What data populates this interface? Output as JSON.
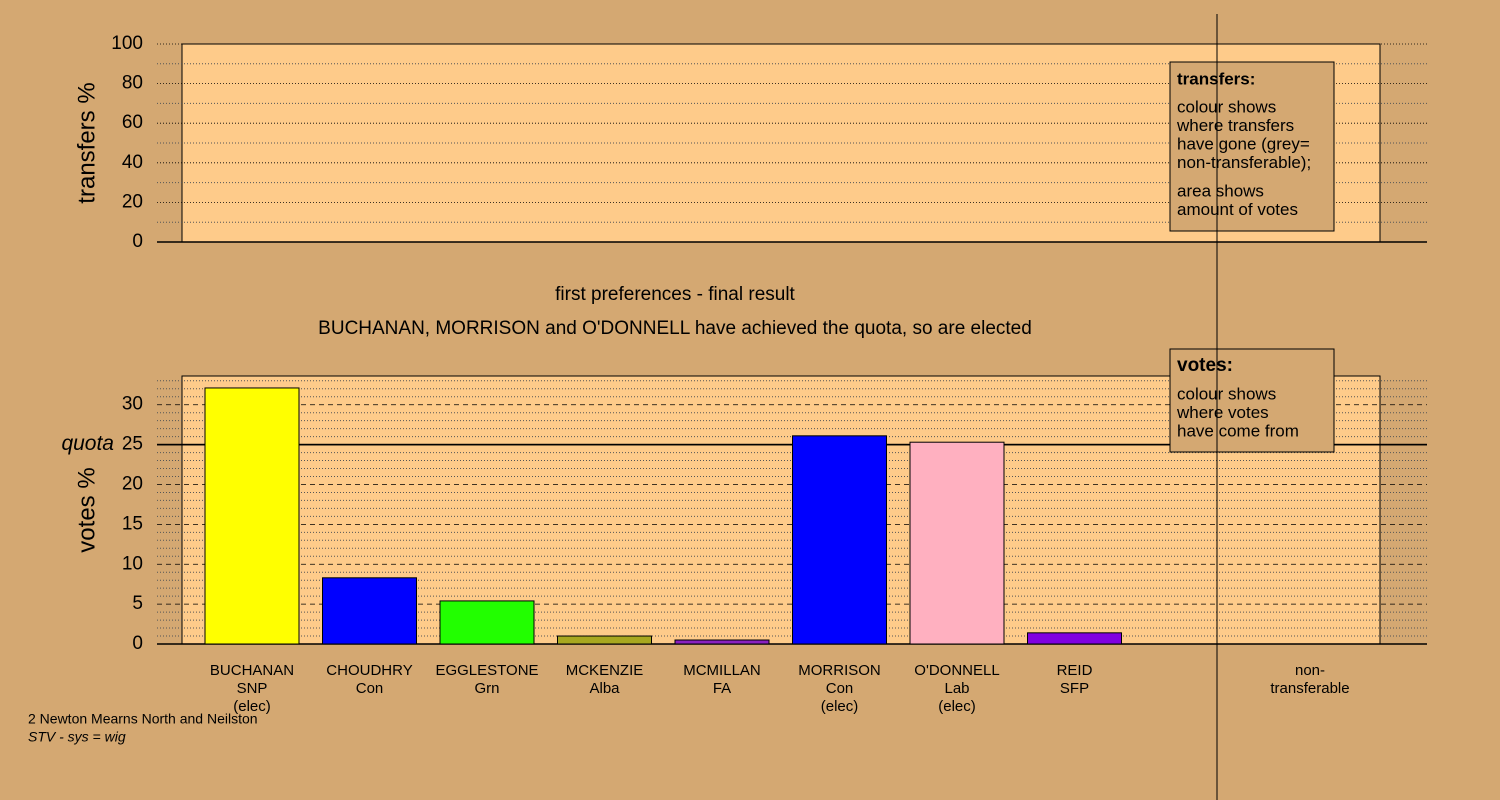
{
  "chart_data": [
    {
      "type": "bar",
      "ylabel": "transfers %",
      "ylim": [
        0,
        100
      ],
      "yticks": [
        0,
        20,
        40,
        60,
        80,
        100
      ],
      "minor_yticks": [
        10,
        30,
        50,
        70,
        90
      ],
      "legend": {
        "title": "transfers:",
        "paragraphs": [
          [
            "colour shows",
            "where transfers",
            "have gone (grey=",
            "non-transferable);"
          ],
          [
            "area shows",
            "amount of votes"
          ]
        ]
      }
    },
    {
      "type": "bar",
      "title": "first preferences - final result",
      "subtitle": "BUCHANAN, MORRISON and O'DONNELL have achieved the quota, so are elected",
      "ylabel": "votes %",
      "ylim": [
        0,
        33.6
      ],
      "yticks": [
        0,
        5,
        10,
        15,
        20,
        25,
        30
      ],
      "minor_yticks": [
        1,
        2,
        3,
        4,
        6,
        7,
        8,
        9,
        11,
        12,
        13,
        14,
        16,
        17,
        18,
        19,
        21,
        22,
        23,
        24,
        26,
        27,
        28,
        29,
        31,
        32,
        33
      ],
      "quota": {
        "value": 25,
        "label": "quota"
      },
      "categories": [
        [
          "BUCHANAN",
          "SNP",
          "(elec)"
        ],
        [
          "CHOUDHRY",
          "Con"
        ],
        [
          "EGGLESTONE",
          "Grn"
        ],
        [
          "MCKENZIE",
          "Alba"
        ],
        [
          "MCMILLAN",
          "FA"
        ],
        [
          "MORRISON",
          "Con",
          "(elec)"
        ],
        [
          "O'DONNELL",
          "Lab",
          "(elec)"
        ],
        [
          "REID",
          "SFP"
        ]
      ],
      "values": [
        32.1,
        8.3,
        5.4,
        1.0,
        0.5,
        26.1,
        25.3,
        1.4
      ],
      "colors": [
        "#ffff00",
        "#0000ff",
        "#22ff00",
        "#a8a820",
        "#8a20c0",
        "#0000ff",
        "#ffb0c0",
        "#8000e0"
      ],
      "extra_category": [
        "non-",
        "transferable"
      ],
      "legend": {
        "title": "votes:",
        "paragraphs": [
          [
            "colour shows",
            "where votes",
            "have come from"
          ]
        ]
      }
    }
  ],
  "notes": [
    "2 Newton Mearns North and Neilston",
    "STV - sys = wig"
  ]
}
